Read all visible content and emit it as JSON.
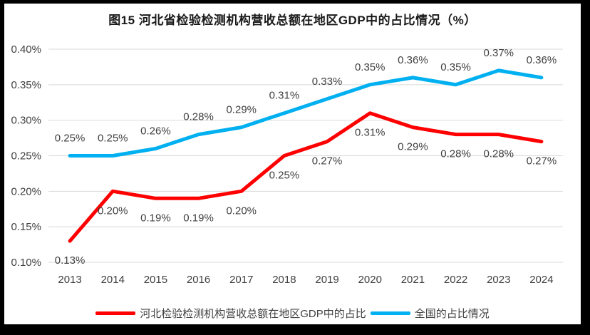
{
  "title": "图15 河北省检验检测机构营收总额在地区GDP中的占比情况（%）",
  "chart_data": {
    "type": "line",
    "x_labels": [
      "2013",
      "2014",
      "2015",
      "2016",
      "2017",
      "2018",
      "2019",
      "2020",
      "2021",
      "2022",
      "2023",
      "2024"
    ],
    "series": [
      {
        "name": "河北检验检测机构营收总额在地区GDP中的占比",
        "color": "#ff0000",
        "values": [
          0.13,
          0.2,
          0.19,
          0.19,
          0.2,
          0.25,
          0.27,
          0.31,
          0.29,
          0.28,
          0.28,
          0.27
        ],
        "labels": [
          "0.13%",
          "0.20%",
          "0.19%",
          "0.19%",
          "0.20%",
          "0.25%",
          "0.27%",
          "0.31%",
          "0.29%",
          "0.28%",
          "0.28%",
          "0.27%"
        ],
        "label_position": "below"
      },
      {
        "name": "全国的占比情况",
        "color": "#00b0f0",
        "values": [
          0.25,
          0.25,
          0.26,
          0.28,
          0.29,
          0.31,
          0.33,
          0.35,
          0.36,
          0.35,
          0.37,
          0.36
        ],
        "labels": [
          "0.25%",
          "0.25%",
          "0.26%",
          "0.28%",
          "0.29%",
          "0.31%",
          "0.33%",
          "0.35%",
          "0.36%",
          "0.35%",
          "0.37%",
          "0.36%"
        ],
        "label_position": "above"
      }
    ],
    "ylim": [
      0.1,
      0.4
    ],
    "ytick_step": 0.05,
    "ytick_labels": [
      "0.10%",
      "0.15%",
      "0.20%",
      "0.25%",
      "0.30%",
      "0.35%",
      "0.40%"
    ],
    "grid": "horizontal",
    "gridline_color": "#d9d9d9",
    "axis_text_color": "#404040",
    "data_label_color": "#404040",
    "legend_position": "bottom"
  }
}
